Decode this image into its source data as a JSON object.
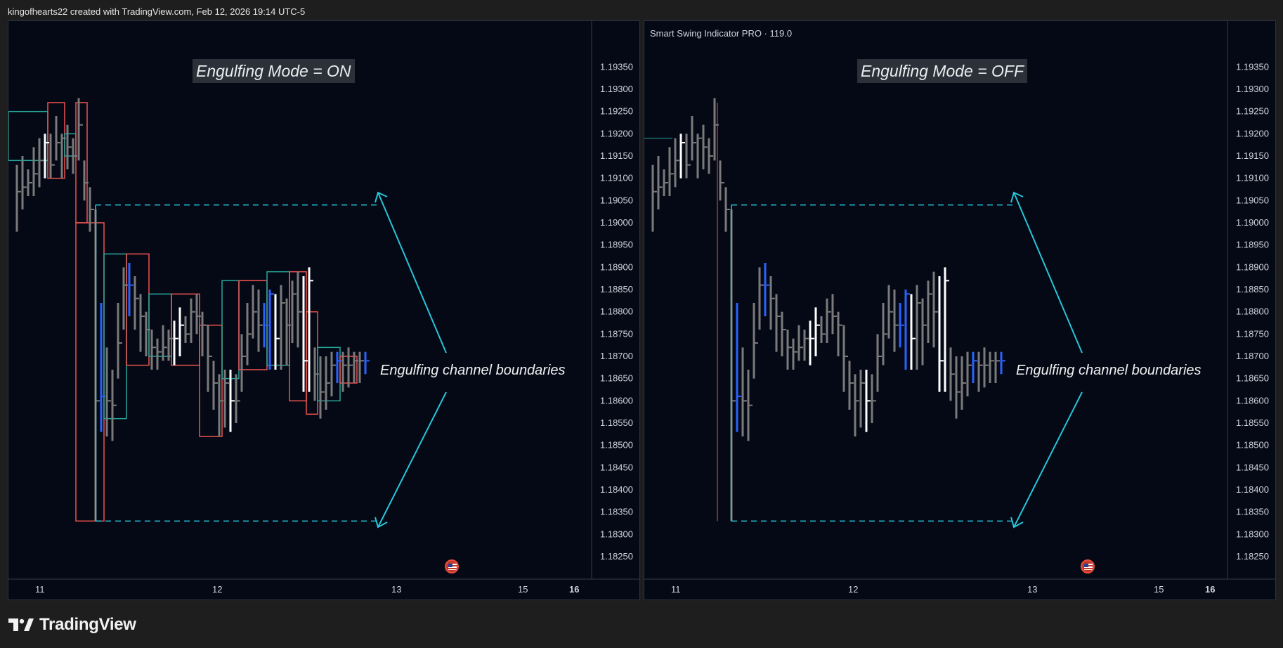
{
  "caption": "kingofhearts22 created with TradingView.com, Feb 12, 2026 19:14 UTC-5",
  "brand": {
    "name": "TradingView",
    "logo_icon": "tradingview-logo-icon"
  },
  "colors": {
    "background": "#050915",
    "grid": "#1c2130",
    "bar_neutral": "#7a7a7a",
    "bar_white": "#ffffff",
    "bar_blue": "#2962ff",
    "channel_dashed": "#26c6da",
    "arrow": "#26c6da",
    "box_bull": "#26a69a",
    "box_bear": "#ef5350"
  },
  "price_axis": [
    1.1935,
    1.193,
    1.1925,
    1.192,
    1.1915,
    1.191,
    1.1905,
    1.19,
    1.1895,
    1.189,
    1.1885,
    1.188,
    1.1875,
    1.187,
    1.1865,
    1.186,
    1.1855,
    1.185,
    1.1845,
    1.184,
    1.1835,
    1.183,
    1.1825
  ],
  "panels": [
    {
      "indicator_label": "",
      "mode_banner": "Engulfing Mode = ON",
      "annotation": "Engulfing channel boundaries",
      "flag_icon": "us-flag-icon",
      "time_labels": [
        "11",
        "12",
        "13",
        "15",
        "16"
      ]
    },
    {
      "indicator_label": "Smart Swing Indicator PRO · 119.0",
      "mode_banner": "Engulfing Mode = OFF",
      "annotation": "Engulfing channel boundaries",
      "flag_icon": "us-flag-icon",
      "time_labels": [
        "11",
        "12",
        "13",
        "15",
        "16"
      ]
    }
  ],
  "chart_data": [
    {
      "type": "ohlc",
      "title": "Engulfing Mode = ON",
      "ylim": [
        1.1822,
        1.1939
      ],
      "y_ticks": [
        1.1935,
        1.193,
        1.1925,
        1.192,
        1.1915,
        1.191,
        1.1905,
        1.19,
        1.1895,
        1.189,
        1.1885,
        1.188,
        1.1875,
        1.187,
        1.1865,
        1.186,
        1.1855,
        1.185,
        1.1845,
        1.184,
        1.1835,
        1.183,
        1.1825
      ],
      "x_labels": [
        "11",
        "12",
        "13",
        "15",
        "16"
      ],
      "channel": {
        "upper": 1.1904,
        "lower": 1.1833
      },
      "grid": false
    },
    {
      "type": "ohlc",
      "title": "Engulfing Mode = OFF",
      "ylim": [
        1.1822,
        1.1939
      ],
      "y_ticks": [
        1.1935,
        1.193,
        1.1925,
        1.192,
        1.1915,
        1.191,
        1.1905,
        1.19,
        1.1895,
        1.189,
        1.1885,
        1.188,
        1.1875,
        1.187,
        1.1865,
        1.186,
        1.1855,
        1.185,
        1.1845,
        1.184,
        1.1835,
        1.183,
        1.1825
      ],
      "x_labels": [
        "11",
        "12",
        "13",
        "15",
        "16"
      ],
      "channel": {
        "upper": 1.1904,
        "lower": 1.1833
      },
      "grid": false
    }
  ]
}
